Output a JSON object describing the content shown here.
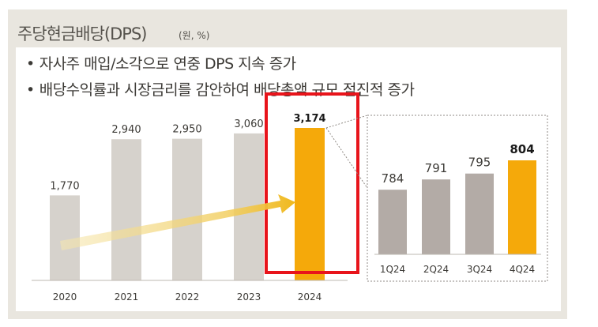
{
  "title": "주당현금배당(DPS)",
  "unit": "(원, %)",
  "bullets": [
    "자사주 매입/소각으로 연중 DPS 지속 증가",
    "배당수익률과 시장금리를 감안하여 배당총액 규모 점진적 증가"
  ],
  "colors": {
    "bar_gray": "#d6d2cc",
    "bar_highlight": "#f5a90a",
    "quarter_gray": "#b3aba6",
    "highlight_box": "#e8141b",
    "panel_bg": "#e9e6df"
  },
  "chart_data": [
    {
      "type": "bar",
      "name": "annual",
      "categories": [
        "2020",
        "2021",
        "2022",
        "2023",
        "2024"
      ],
      "values": [
        1770,
        2940,
        2950,
        3060,
        3174
      ],
      "labels": [
        "1,770",
        "2,940",
        "2,950",
        "3,060",
        "3,174"
      ],
      "highlight_index": 4,
      "ylim": [
        0,
        3300
      ],
      "title": "",
      "xlabel": "",
      "ylabel": ""
    },
    {
      "type": "bar",
      "name": "quarterly",
      "categories": [
        "1Q24",
        "2Q24",
        "3Q24",
        "4Q24"
      ],
      "values": [
        784,
        791,
        795,
        804
      ],
      "labels": [
        "784",
        "791",
        "795",
        "804"
      ],
      "highlight_index": 3,
      "ylim": [
        740,
        815
      ],
      "title": "",
      "xlabel": "",
      "ylabel": ""
    }
  ]
}
